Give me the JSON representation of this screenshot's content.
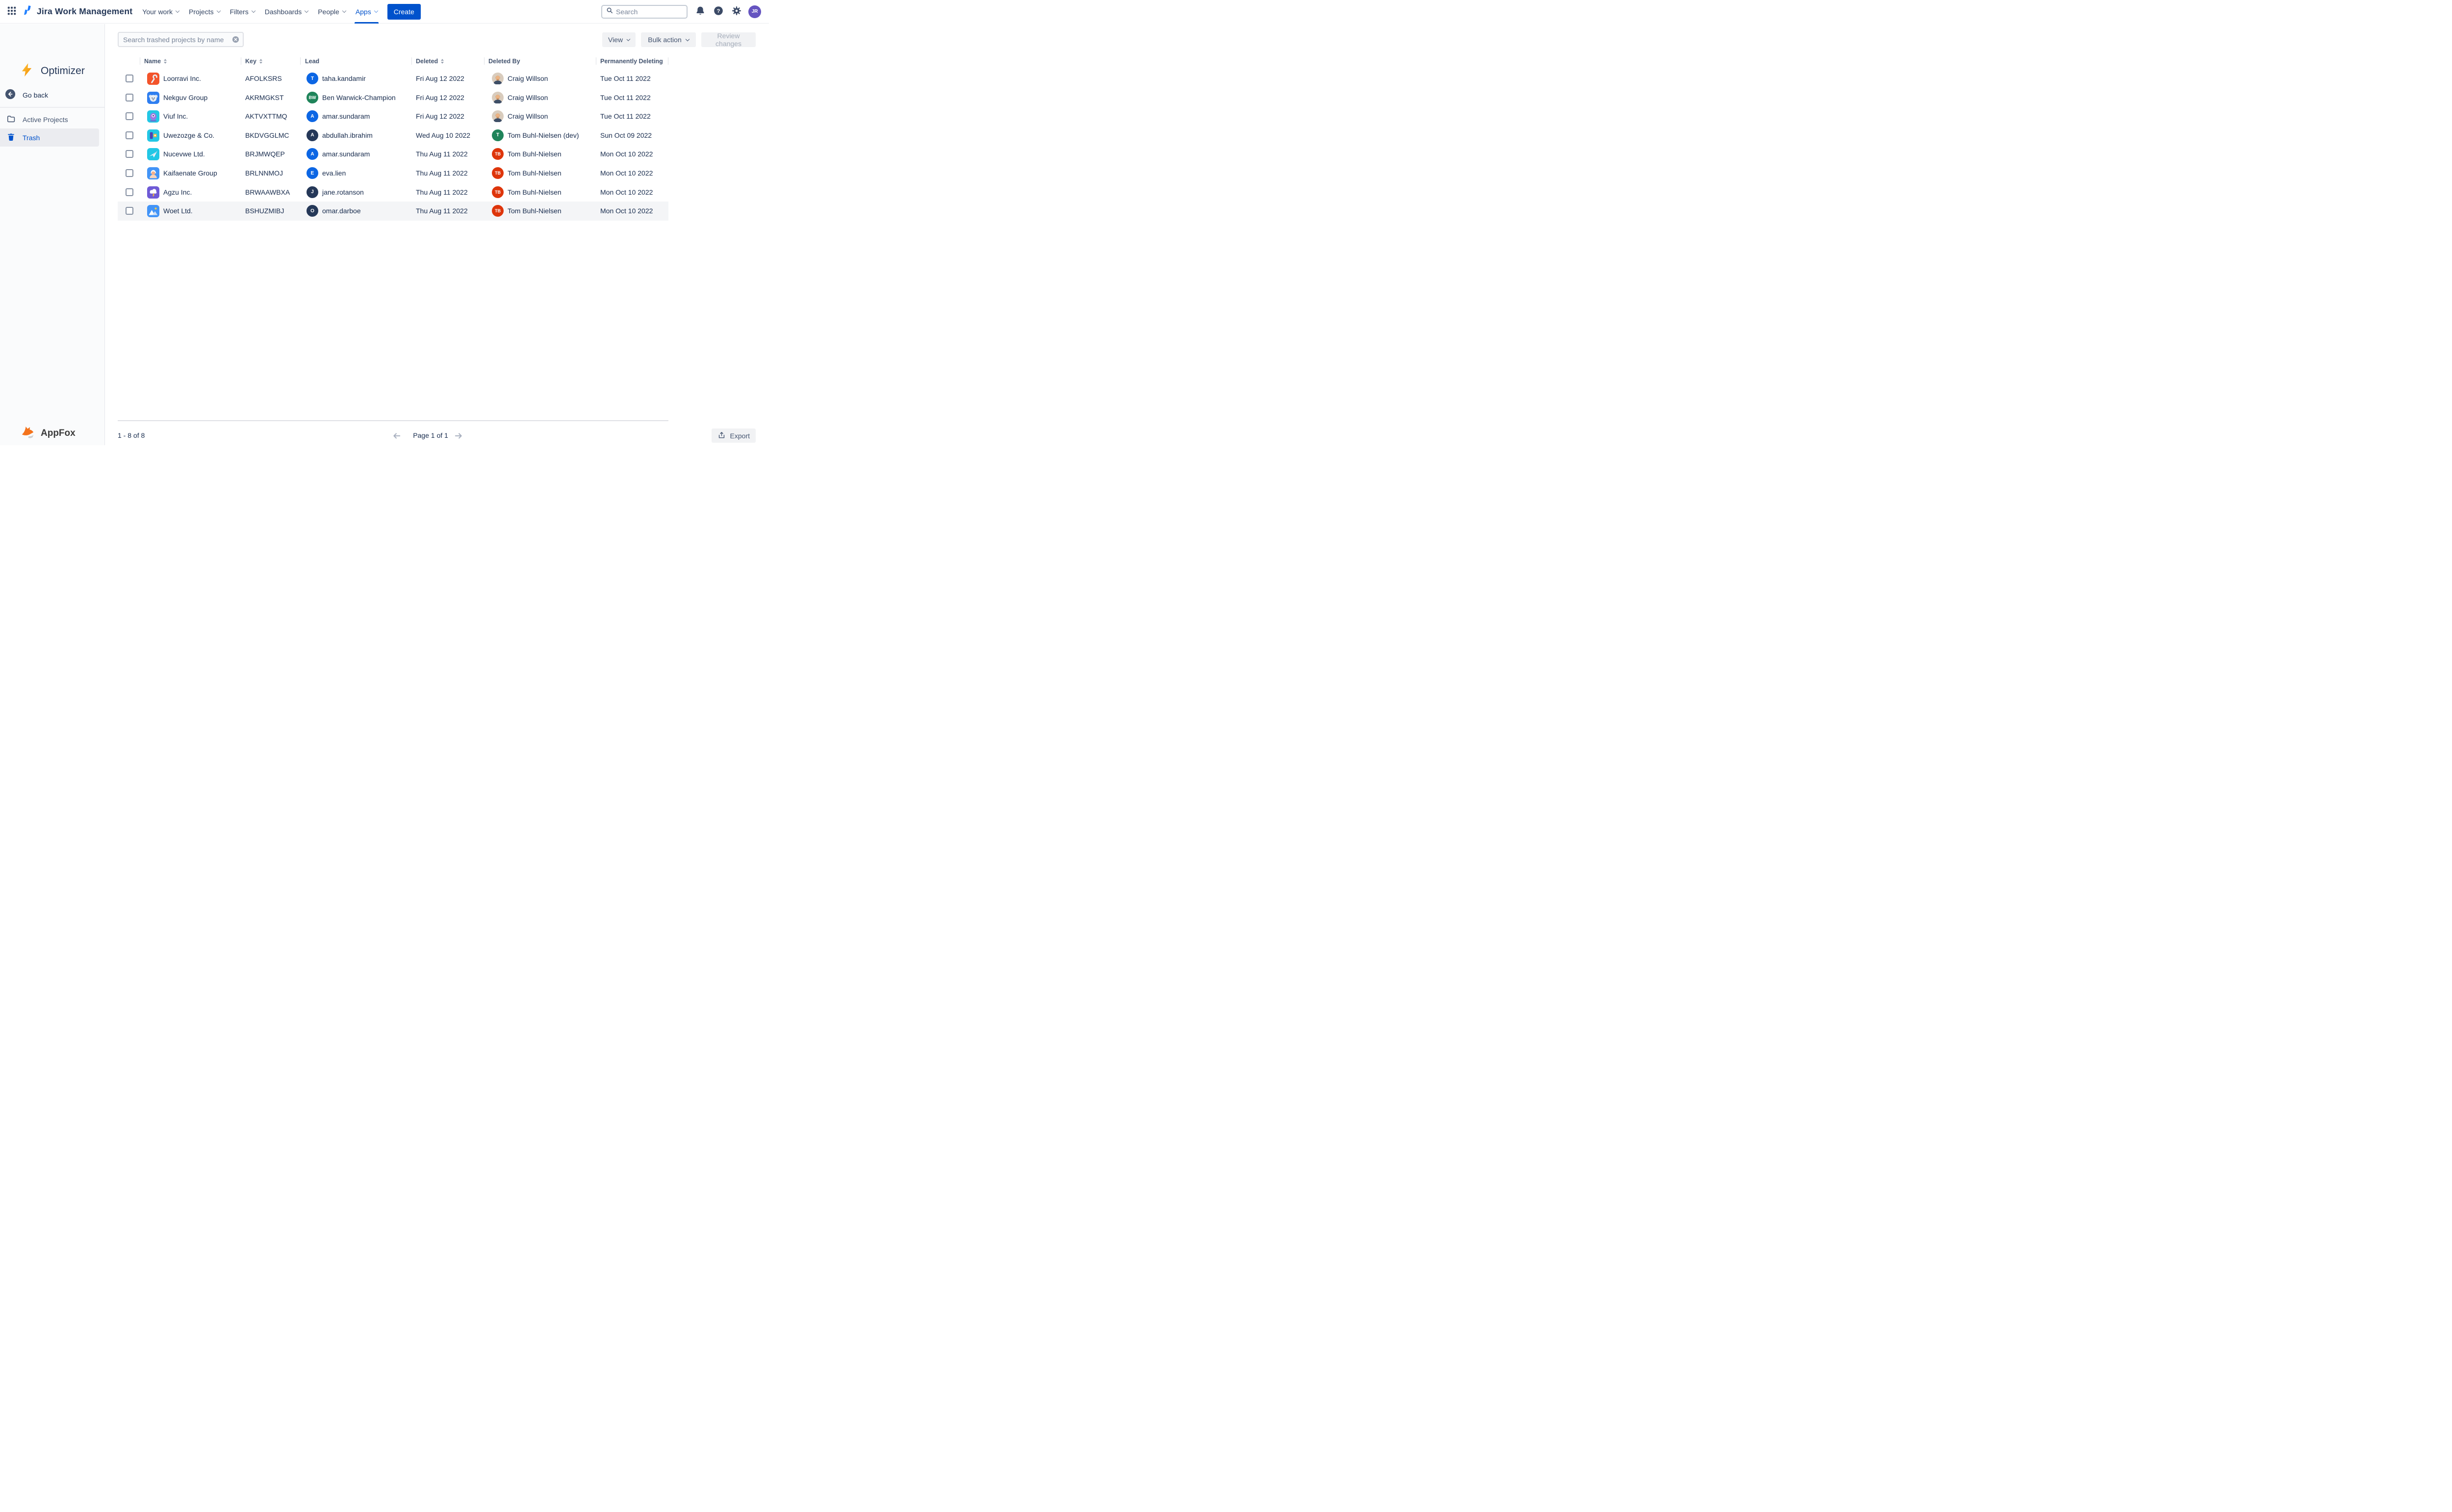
{
  "nav": {
    "product_name": "Jira Work Management",
    "menu_items": [
      {
        "label": "Your work",
        "active": false
      },
      {
        "label": "Projects",
        "active": false
      },
      {
        "label": "Filters",
        "active": false
      },
      {
        "label": "Dashboards",
        "active": false
      },
      {
        "label": "People",
        "active": false
      },
      {
        "label": "Apps",
        "active": true
      }
    ],
    "active_color": "#0052CC",
    "create_label": "Create",
    "search_placeholder": "Search",
    "user_initials": "JR",
    "user_avatar_color": "#6554C0"
  },
  "sidebar": {
    "app_name": "Optimizer",
    "back_label": "Go back",
    "items": [
      {
        "label": "Active Projects",
        "icon": "folder",
        "active": false
      },
      {
        "label": "Trash",
        "icon": "trash",
        "active": true
      }
    ],
    "footer_brand": "AppFox"
  },
  "toolbar": {
    "search_placeholder": "Search trashed projects by name",
    "view_label": "View",
    "bulk_action_label": "Bulk action",
    "review_changes_label": "Review changes"
  },
  "table": {
    "columns": [
      {
        "label": "Name",
        "sortable": true
      },
      {
        "label": "Key",
        "sortable": true
      },
      {
        "label": "Lead",
        "sortable": false
      },
      {
        "label": "Deleted",
        "sortable": true
      },
      {
        "label": "Deleted By",
        "sortable": false
      },
      {
        "label": "Permanently Deleting",
        "sortable": false
      }
    ],
    "rows": [
      {
        "name": "Loorravi Inc.",
        "key": "AFOLKSRS",
        "icon": "wrench",
        "icon_bg": "#F3542B",
        "lead": {
          "initials": "T",
          "color": "#0C66E4",
          "name": "taha.kandamir"
        },
        "deleted": "Fri Aug 12 2022",
        "deleted_by": {
          "type": "photo",
          "name": "Craig Willson"
        },
        "permanently_deleting": "Tue Oct 11 2022",
        "highlighted": false
      },
      {
        "name": "Nekguv Group",
        "key": "AKRMGKST",
        "icon": "koala",
        "icon_bg": "#2E7EF0",
        "lead": {
          "initials": "BW",
          "color": "#1F845A",
          "name": "Ben Warwick-Champion"
        },
        "deleted": "Fri Aug 12 2022",
        "deleted_by": {
          "type": "photo",
          "name": "Craig Willson"
        },
        "permanently_deleting": "Tue Oct 11 2022",
        "highlighted": false
      },
      {
        "name": "Viuf Inc.",
        "key": "AKTVXTTMQ",
        "icon": "alien",
        "icon_bg": "#22C7E5",
        "lead": {
          "initials": "A",
          "color": "#0C66E4",
          "name": "amar.sundaram"
        },
        "deleted": "Fri Aug 12 2022",
        "deleted_by": {
          "type": "photo",
          "name": "Craig Willson"
        },
        "permanently_deleting": "Tue Oct 11 2022",
        "highlighted": false
      },
      {
        "name": "Uwezozge & Co.",
        "key": "BKDVGGLMC",
        "icon": "blocks",
        "icon_bg": "#22C7E5",
        "lead": {
          "initials": "A",
          "color": "#253858",
          "name": "abdullah.ibrahim"
        },
        "deleted": "Wed Aug 10 2022",
        "deleted_by": {
          "type": "initials",
          "initials": "T",
          "color": "#1F845A",
          "name": "Tom Buhl-Nielsen (dev)"
        },
        "permanently_deleting": "Sun Oct 09 2022",
        "highlighted": false
      },
      {
        "name": "Nucevwe Ltd.",
        "key": "BRJMWQEP",
        "icon": "plane",
        "icon_bg": "#22C7E5",
        "lead": {
          "initials": "A",
          "color": "#0C66E4",
          "name": "amar.sundaram"
        },
        "deleted": "Thu Aug 11 2022",
        "deleted_by": {
          "type": "initials",
          "initials": "TB",
          "color": "#DE350B",
          "name": "Tom Buhl-Nielsen"
        },
        "permanently_deleting": "Mon Oct 10 2022",
        "highlighted": false
      },
      {
        "name": "Kaifaenate Group",
        "key": "BRLNNMOJ",
        "icon": "person",
        "icon_bg": "#4294F7",
        "lead": {
          "initials": "E",
          "color": "#0C66E4",
          "name": "eva.lien"
        },
        "deleted": "Thu Aug 11 2022",
        "deleted_by": {
          "type": "initials",
          "initials": "TB",
          "color": "#DE350B",
          "name": "Tom Buhl-Nielsen"
        },
        "permanently_deleting": "Mon Oct 10 2022",
        "highlighted": false
      },
      {
        "name": "Agzu Inc.",
        "key": "BRWAAWBXA",
        "icon": "storm",
        "icon_bg": "#6E5AD6",
        "lead": {
          "initials": "J",
          "color": "#253858",
          "name": "jane.rotanson"
        },
        "deleted": "Thu Aug 11 2022",
        "deleted_by": {
          "type": "initials",
          "initials": "TB",
          "color": "#DE350B",
          "name": "Tom Buhl-Nielsen"
        },
        "permanently_deleting": "Mon Oct 10 2022",
        "highlighted": false
      },
      {
        "name": "Woet Ltd.",
        "key": "BSHUZMIBJ",
        "icon": "mountains",
        "icon_bg": "#4294F7",
        "lead": {
          "initials": "O",
          "color": "#253858",
          "name": "omar.darboe"
        },
        "deleted": "Thu Aug 11 2022",
        "deleted_by": {
          "type": "initials",
          "initials": "TB",
          "color": "#DE350B",
          "name": "Tom Buhl-Nielsen"
        },
        "permanently_deleting": "Mon Oct 10 2022",
        "highlighted": true
      }
    ]
  },
  "footer": {
    "range_label": "1 - 8 of 8",
    "page_label": "Page 1 of 1",
    "export_label": "Export"
  }
}
